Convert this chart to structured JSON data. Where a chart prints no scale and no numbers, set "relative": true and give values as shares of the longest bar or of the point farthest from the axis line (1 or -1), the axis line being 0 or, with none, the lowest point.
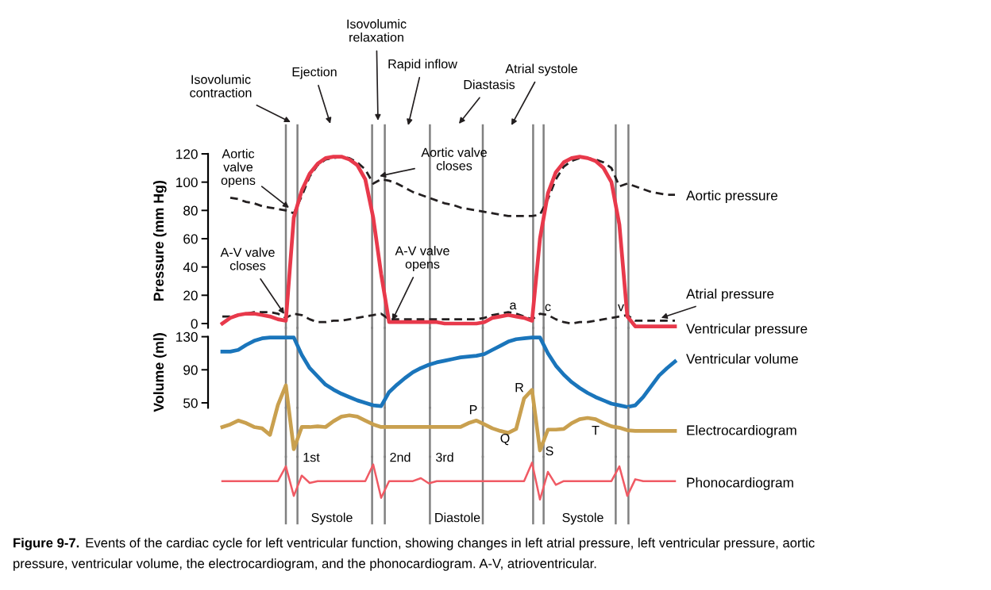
{
  "chart_data": [
    {
      "type": "line",
      "ylabel": "Pressure (mm Hg)",
      "ylim": [
        -3,
        120
      ],
      "yticks": [
        0,
        20,
        40,
        60,
        80,
        100,
        120
      ],
      "tick_labels": "y",
      "categories": [
        null,
        null,
        null,
        null,
        null,
        null,
        null,
        null,
        null,
        null,
        null,
        null,
        null,
        null,
        null,
        null,
        null,
        null,
        null,
        null,
        null,
        null,
        null,
        null,
        null,
        null,
        null,
        null,
        null,
        null,
        null,
        null,
        null,
        null,
        null,
        null,
        null,
        null,
        null,
        null,
        null,
        null,
        null,
        null,
        null,
        null,
        null,
        null,
        null,
        null,
        null,
        null,
        null,
        null,
        null,
        null,
        null,
        null
      ],
      "series": [
        {
          "name": "Aortic pressure",
          "color": "#231f20",
          "line_style": "dashed",
          "values": [
            null,
            89,
            88,
            86,
            85,
            83,
            82,
            81,
            80,
            78,
            90,
            104,
            112,
            116,
            117,
            118,
            117,
            114,
            109,
            99,
            102,
            101,
            99,
            96,
            93,
            91,
            89,
            87,
            85,
            84,
            82,
            81,
            80,
            79,
            78,
            77,
            76,
            76,
            76,
            76,
            77,
            88,
            102,
            111,
            115,
            117,
            117,
            116,
            114,
            110,
            97,
            99,
            97,
            95,
            93,
            92,
            91,
            91
          ]
        },
        {
          "name": "Atrial pressure",
          "color": "#231f20",
          "line_style": "dashed",
          "values": [
            5,
            5,
            6,
            7,
            8,
            8,
            8,
            7,
            4,
            7,
            6,
            3,
            1,
            1,
            2,
            2,
            3,
            4,
            5,
            6,
            7,
            3,
            3,
            3,
            3,
            3,
            3,
            3,
            3,
            3,
            3,
            3,
            3,
            4,
            6,
            7,
            8,
            7,
            5,
            3,
            7,
            6,
            3,
            1,
            0,
            1,
            1,
            2,
            3,
            4,
            5,
            6,
            2,
            2,
            2,
            2,
            2,
            2
          ]
        },
        {
          "name": "Ventricular pressure",
          "color": "#e8394b",
          "line_style": "solid",
          "values": [
            0,
            4,
            6,
            7,
            7,
            6,
            5,
            3,
            2,
            75,
            94,
            106,
            113,
            117,
            118,
            118,
            116,
            112,
            102,
            75,
            35,
            1,
            1,
            1,
            1,
            1,
            1,
            1,
            0,
            0,
            0,
            0,
            0,
            1,
            4,
            5,
            6,
            5,
            4,
            2,
            60,
            92,
            107,
            114,
            117,
            118,
            117,
            115,
            110,
            100,
            70,
            5,
            -2,
            -2,
            -2,
            -2,
            -2,
            -2
          ]
        }
      ],
      "grid": "x",
      "annotations": [
        "Isovolumic\ncontraction",
        "Ejection",
        "Isovolumic\nrelaxation",
        "Rapid inflow",
        "Diastasis",
        "Atrial systole",
        "Aortic\nvalve\nopens",
        "A-V valve\ncloses",
        "Aortic valve\ncloses",
        "A-V valve\nopens",
        "a",
        "c",
        "v"
      ]
    },
    {
      "type": "line",
      "ylabel": "Volume (ml)",
      "ylim": [
        44,
        130
      ],
      "yticks": [
        50,
        90,
        130
      ],
      "tick_labels": "y",
      "categories": [
        null,
        null,
        null,
        null,
        null,
        null,
        null,
        null,
        null,
        null,
        null,
        null,
        null,
        null,
        null,
        null,
        null,
        null,
        null,
        null,
        null,
        null,
        null,
        null,
        null,
        null,
        null,
        null,
        null,
        null,
        null,
        null,
        null,
        null,
        null,
        null,
        null,
        null,
        null,
        null,
        null,
        null,
        null,
        null,
        null,
        null,
        null,
        null,
        null,
        null,
        null,
        null,
        null,
        null,
        null,
        null,
        null,
        null
      ],
      "series": [
        {
          "name": "Ventricular volume",
          "color": "#1a75bb",
          "line_style": "solid",
          "values": [
            112,
            112,
            114,
            120,
            125,
            128,
            129,
            129,
            129,
            129,
            108,
            92,
            82,
            72,
            66,
            61,
            57,
            53,
            50,
            47,
            46,
            63,
            72,
            80,
            87,
            92,
            96,
            99,
            101,
            103,
            105,
            106,
            107,
            109,
            114,
            119,
            124,
            127,
            128,
            129,
            129,
            110,
            95,
            84,
            75,
            68,
            62,
            57,
            53,
            49,
            47,
            45,
            47,
            57,
            70,
            83,
            92,
            100
          ]
        }
      ],
      "grid": "x"
    },
    {
      "type": "line",
      "relative": true,
      "tick_labels": false,
      "categories": [
        null,
        null,
        null,
        null,
        null,
        null,
        null,
        null,
        null,
        null,
        null,
        null,
        null,
        null,
        null,
        null,
        null,
        null,
        null,
        null,
        null,
        null,
        null,
        null,
        null,
        null,
        null,
        null,
        null,
        null,
        null,
        null,
        null,
        null,
        null,
        null,
        null,
        null,
        null,
        null,
        null,
        null,
        null,
        null,
        null,
        null,
        null,
        null,
        null,
        null,
        null,
        null,
        null,
        null,
        null,
        null,
        null,
        null
      ],
      "series": [
        {
          "name": "Electrocardiogram",
          "color": "#c9a04f",
          "line_style": "solid",
          "values": [
            0.36,
            0.4,
            0.46,
            0.42,
            0.36,
            0.34,
            0.24,
            0.7,
            1,
            0.02,
            0.36,
            0.36,
            0.37,
            0.36,
            0.45,
            0.52,
            0.54,
            0.52,
            0.46,
            0.4,
            0.36,
            0.36,
            0.36,
            0.36,
            0.36,
            0.36,
            0.36,
            0.36,
            0.36,
            0.36,
            0.36,
            0.42,
            0.46,
            0.4,
            0.34,
            0.3,
            0.27,
            0.33,
            0.8,
            0.93,
            0,
            0.32,
            0.32,
            0.33,
            0.42,
            0.48,
            0.5,
            0.48,
            0.42,
            0.37,
            0.35,
            0.31,
            0.3,
            0.3,
            0.3,
            0.3,
            0.3,
            0.3
          ]
        }
      ],
      "grid": "x",
      "annotations": [
        "P",
        "Q",
        "R",
        "S",
        "T"
      ]
    },
    {
      "type": "line",
      "relative": true,
      "tick_labels": false,
      "categories": [
        null,
        null,
        null,
        null,
        null,
        null,
        null,
        null,
        null,
        null,
        null,
        null,
        null,
        null,
        null,
        null,
        null,
        null,
        null,
        null,
        null,
        null,
        null,
        null,
        null,
        null,
        null,
        null,
        null,
        null,
        null,
        null,
        null,
        null,
        null,
        null,
        null,
        null,
        null,
        null,
        null,
        null,
        null,
        null,
        null,
        null,
        null,
        null,
        null,
        null,
        null,
        null,
        null,
        null,
        null,
        null,
        null,
        null
      ],
      "series": [
        {
          "name": "Phonocardiogram",
          "color": "#f05a64",
          "line_style": "solid",
          "values": [
            0.5,
            0.5,
            0.5,
            0.5,
            0.5,
            0.5,
            0.5,
            0.5,
            0.9,
            0.1,
            0.65,
            0.45,
            0.5,
            0.5,
            0.5,
            0.5,
            0.5,
            0.5,
            0.5,
            0.95,
            0.05,
            0.5,
            0.5,
            0.5,
            0.5,
            0.58,
            0.44,
            0.5,
            0.5,
            0.5,
            0.5,
            0.5,
            0.5,
            0.5,
            0.5,
            0.5,
            0.5,
            0.5,
            0.5,
            1,
            0,
            0.75,
            0.4,
            0.5,
            0.5,
            0.5,
            0.5,
            0.5,
            0.5,
            0.5,
            0.9,
            0.1,
            0.55,
            0.5,
            0.5,
            0.5,
            0.5,
            0.5
          ]
        }
      ],
      "grid": "x",
      "annotations": [
        "1st",
        "2nd",
        "3rd",
        "Systole",
        "Diastole",
        "Systole",
        "Figure 9-7.",
        "Events of the cardiac cycle for left ventricular function, showing changes in left atrial pressure, left ventricular pressure, aortic",
        "pressure, ventricular volume, the electrocardiogram, and the phonocardiogram. A-V, atrioventricular."
      ]
    }
  ]
}
